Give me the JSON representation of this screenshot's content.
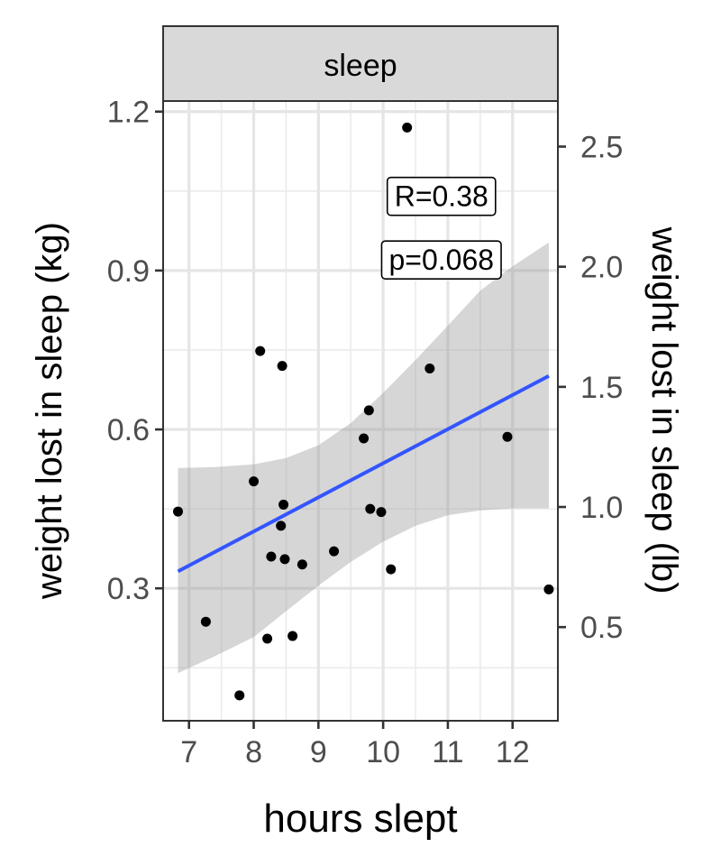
{
  "chart_data": {
    "type": "scatter",
    "facet_label": "sleep",
    "xlabel": "hours slept",
    "ylabel": "weight lost in sleep (kg)",
    "ylabel_right": "weight lost in sleep (lb)",
    "xlim": [
      6.6,
      12.7
    ],
    "ylim": [
      0.05,
      1.22
    ],
    "x_ticks": [
      7,
      8,
      9,
      10,
      11,
      12
    ],
    "x_tick_labels": [
      "7",
      "8",
      "9",
      "10",
      "11",
      "12"
    ],
    "y_ticks": [
      0.3,
      0.6,
      0.9,
      1.2
    ],
    "y_tick_labels": [
      "0.3",
      "0.6",
      "0.9",
      "1.2"
    ],
    "y2_ticks": [
      0.5,
      1.0,
      1.5,
      2.0,
      2.5
    ],
    "y2_tick_labels": [
      "0.5",
      "1.0",
      "1.5",
      "2.0",
      "2.5"
    ],
    "y2_unit_factor": 2.20462,
    "grid": true,
    "points": [
      {
        "x": 6.83,
        "y": 0.445
      },
      {
        "x": 7.26,
        "y": 0.237
      },
      {
        "x": 7.78,
        "y": 0.098
      },
      {
        "x": 8.0,
        "y": 0.502
      },
      {
        "x": 8.1,
        "y": 0.748
      },
      {
        "x": 8.21,
        "y": 0.205
      },
      {
        "x": 8.27,
        "y": 0.36
      },
      {
        "x": 8.42,
        "y": 0.418
      },
      {
        "x": 8.44,
        "y": 0.72
      },
      {
        "x": 8.46,
        "y": 0.458
      },
      {
        "x": 8.48,
        "y": 0.355
      },
      {
        "x": 8.6,
        "y": 0.21
      },
      {
        "x": 8.75,
        "y": 0.345
      },
      {
        "x": 9.24,
        "y": 0.37
      },
      {
        "x": 9.7,
        "y": 0.583
      },
      {
        "x": 9.78,
        "y": 0.636
      },
      {
        "x": 9.8,
        "y": 0.45
      },
      {
        "x": 9.97,
        "y": 0.444
      },
      {
        "x": 10.12,
        "y": 0.336
      },
      {
        "x": 10.37,
        "y": 1.17
      },
      {
        "x": 10.72,
        "y": 0.715
      },
      {
        "x": 11.92,
        "y": 0.586
      },
      {
        "x": 12.56,
        "y": 0.298
      }
    ],
    "fit": {
      "line": [
        {
          "x": 6.83,
          "y": 0.332
        },
        {
          "x": 12.56,
          "y": 0.701
        }
      ],
      "ci_upper": [
        {
          "x": 6.83,
          "y": 0.527
        },
        {
          "x": 7.4,
          "y": 0.529
        },
        {
          "x": 8.0,
          "y": 0.534
        },
        {
          "x": 8.5,
          "y": 0.546
        },
        {
          "x": 9.0,
          "y": 0.57
        },
        {
          "x": 9.5,
          "y": 0.612
        },
        {
          "x": 10.0,
          "y": 0.669
        },
        {
          "x": 10.5,
          "y": 0.731
        },
        {
          "x": 11.0,
          "y": 0.796
        },
        {
          "x": 11.5,
          "y": 0.862
        },
        {
          "x": 12.0,
          "y": 0.908
        },
        {
          "x": 12.56,
          "y": 0.953
        }
      ],
      "ci_lower": [
        {
          "x": 12.56,
          "y": 0.451
        },
        {
          "x": 12.0,
          "y": 0.451
        },
        {
          "x": 11.5,
          "y": 0.447
        },
        {
          "x": 11.0,
          "y": 0.438
        },
        {
          "x": 10.5,
          "y": 0.418
        },
        {
          "x": 10.0,
          "y": 0.388
        },
        {
          "x": 9.5,
          "y": 0.35
        },
        {
          "x": 9.0,
          "y": 0.305
        },
        {
          "x": 8.5,
          "y": 0.257
        },
        {
          "x": 8.0,
          "y": 0.208
        },
        {
          "x": 7.4,
          "y": 0.172
        },
        {
          "x": 6.83,
          "y": 0.14
        }
      ]
    },
    "annotations": [
      {
        "text": "R=0.38",
        "x": 10.9,
        "y": 1.04
      },
      {
        "text": "p=0.068",
        "x": 10.9,
        "y": 0.92
      }
    ],
    "colors": {
      "fit_line": "#3355ff",
      "ribbon": "#999999",
      "point": "#000000",
      "strip_fill": "#d9d9d9"
    }
  }
}
